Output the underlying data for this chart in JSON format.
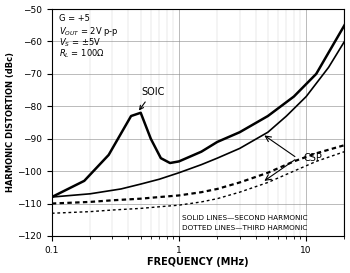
{
  "title": "",
  "xlabel": "FREQUENCY (MHz)",
  "ylabel": "HARMONIC DISTORTION (dBc)",
  "xlim": [
    0.1,
    20
  ],
  "ylim": [
    -120,
    -50
  ],
  "yticks": [
    -120,
    -110,
    -100,
    -90,
    -80,
    -70,
    -60,
    -50
  ],
  "legend_text1": "SOLID LINES—SECOND HARMONIC",
  "legend_text2": "DOTTED LINES—THIRD HARMONIC",
  "soic_label": "SOIC",
  "csp_label": "CSP",
  "background_color": "#ffffff",
  "soic_2nd_x": [
    0.1,
    0.18,
    0.28,
    0.42,
    0.5,
    0.6,
    0.72,
    0.85,
    1.0,
    1.5,
    2.0,
    3.0,
    5.0,
    8.0,
    12.0,
    20.0
  ],
  "soic_2nd_y": [
    -108,
    -103,
    -95,
    -83,
    -82,
    -90,
    -96,
    -97.5,
    -97,
    -94,
    -91,
    -88,
    -83,
    -77,
    -70,
    -55
  ],
  "csp_2nd_x": [
    0.1,
    0.2,
    0.35,
    0.5,
    0.7,
    1.0,
    1.5,
    2.0,
    3.0,
    5.0,
    7.0,
    10.0,
    15.0,
    20.0
  ],
  "csp_2nd_y": [
    -108,
    -107,
    -105.5,
    -104,
    -102.5,
    -100.5,
    -98,
    -96,
    -93,
    -88,
    -83,
    -77,
    -68,
    -60
  ],
  "soic_3rd_x": [
    0.1,
    0.2,
    0.3,
    0.5,
    0.7,
    1.0,
    1.5,
    2.0,
    3.0,
    5.0,
    8.0,
    12.0,
    20.0
  ],
  "soic_3rd_y": [
    -110,
    -109.5,
    -109,
    -108.5,
    -108,
    -107.5,
    -106.5,
    -105.5,
    -103.5,
    -100.5,
    -97,
    -94.5,
    -92
  ],
  "csp_3rd_x": [
    0.1,
    0.2,
    0.3,
    0.5,
    0.7,
    1.0,
    1.5,
    2.0,
    3.0,
    5.0,
    8.0,
    12.0,
    20.0
  ],
  "csp_3rd_y": [
    -113,
    -112.5,
    -112,
    -111.5,
    -111,
    -110.5,
    -109.5,
    -108.5,
    -106.5,
    -103.5,
    -100,
    -97,
    -94
  ]
}
